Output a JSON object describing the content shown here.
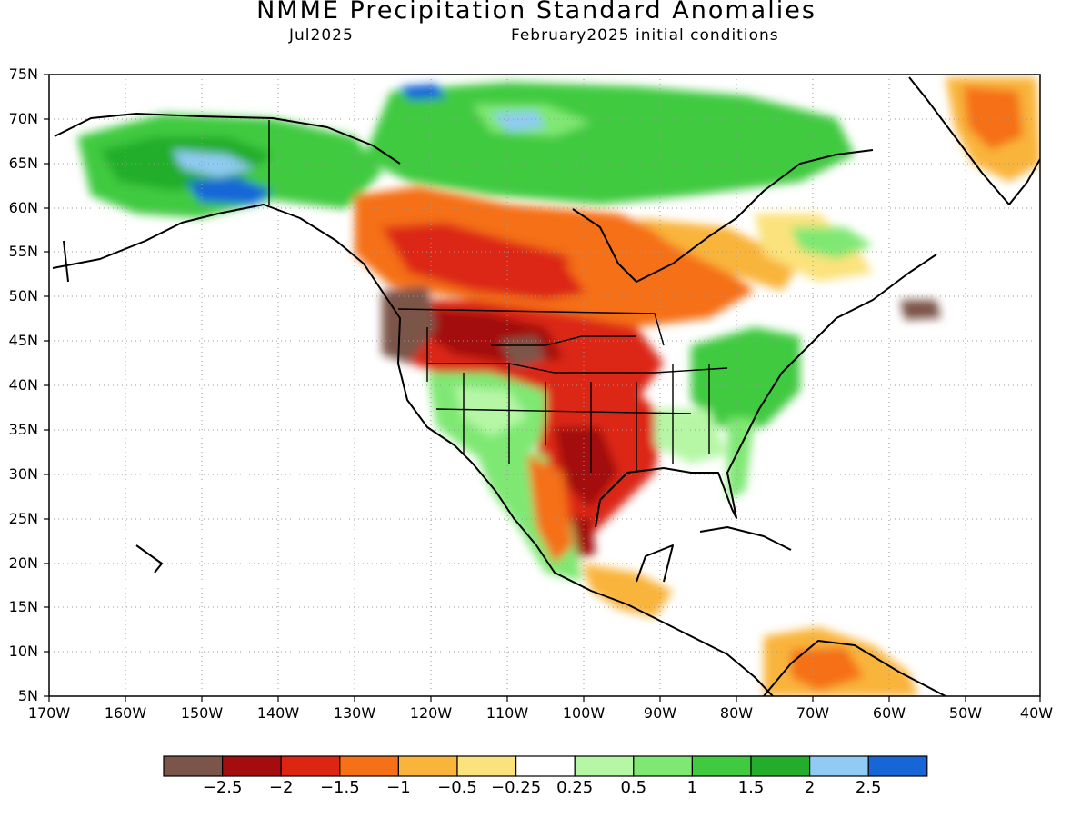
{
  "title": "NMME Precipitation Standard Anomalies",
  "subtitle_left": "Jul2025",
  "subtitle_right": "February2025 initial conditions",
  "lat_ticks": [
    "75N",
    "70N",
    "65N",
    "60N",
    "55N",
    "50N",
    "45N",
    "40N",
    "35N",
    "30N",
    "25N",
    "20N",
    "15N",
    "10N",
    "5N"
  ],
  "lon_ticks": [
    "170W",
    "160W",
    "150W",
    "140W",
    "130W",
    "120W",
    "110W",
    "100W",
    "90W",
    "80W",
    "70W",
    "60W",
    "50W",
    "40W"
  ],
  "colorbar": {
    "colors": [
      "#7b5549",
      "#a30d0d",
      "#dc2612",
      "#f57016",
      "#f9b43b",
      "#fbe27c",
      "#ffffff",
      "#b6f7a6",
      "#7fe873",
      "#3fca40",
      "#23ad2a",
      "#8fcbf2",
      "#1766d8"
    ],
    "labels": [
      "−2.5",
      "−2",
      "−1.5",
      "−1",
      "−0.5",
      "−0.25",
      "0.25",
      "0.5",
      "1",
      "1.5",
      "2",
      "2.5"
    ]
  }
}
